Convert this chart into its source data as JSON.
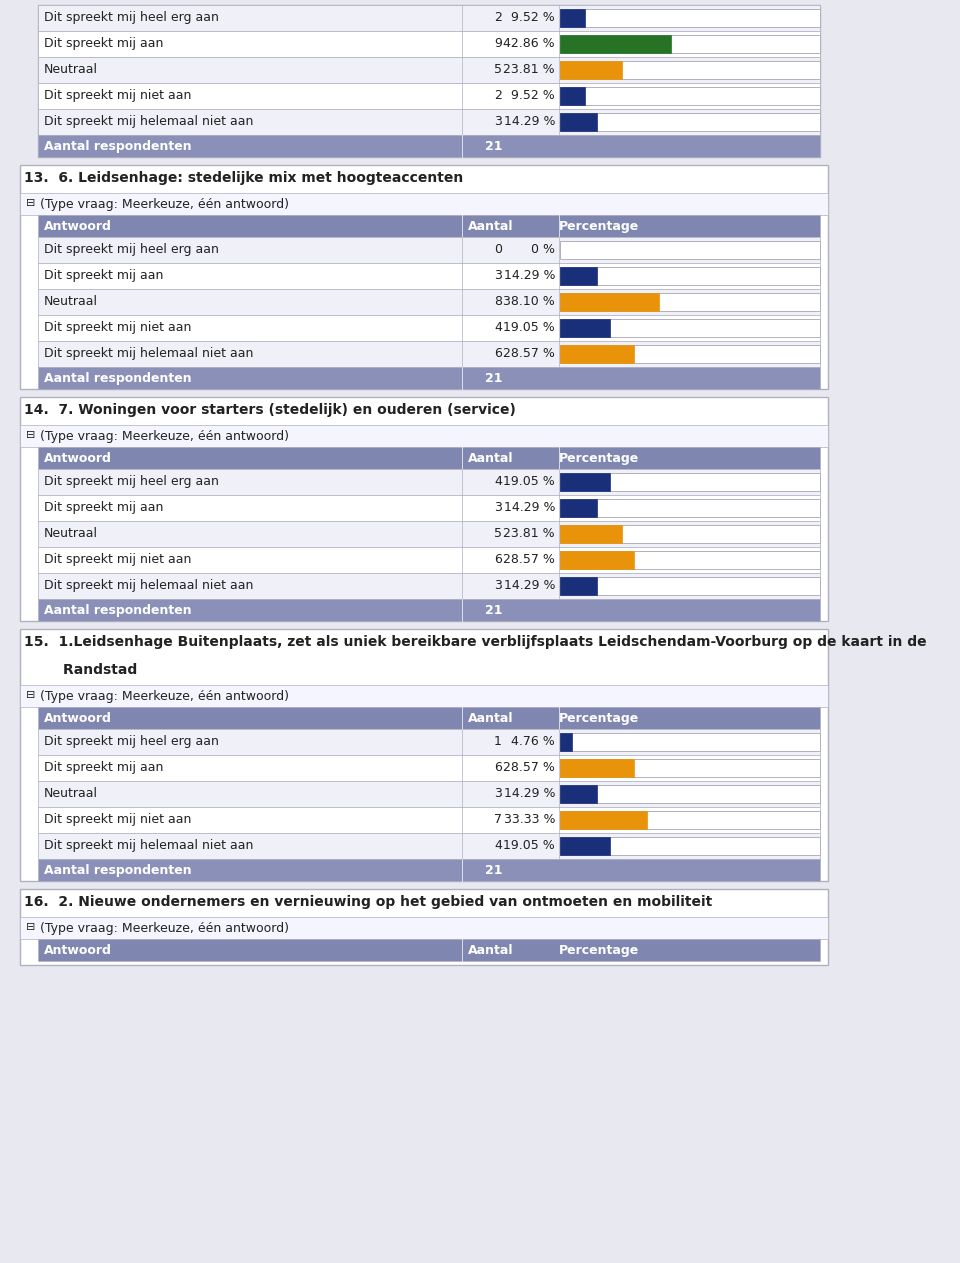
{
  "fig_w": 9.6,
  "fig_h": 12.63,
  "dpi": 100,
  "bg_color": "#e8e8f0",
  "table_bg": "#ffffff",
  "header_color": "#7f86b0",
  "header_text_color": "#ffffff",
  "row_even_color": "#f0f0f8",
  "row_odd_color": "#ffffff",
  "border_color": "#b0b0c0",
  "section_bg": "#f5f5ff",
  "text_color": "#222222",
  "total_row_color": "#8a90b8",
  "top_table": {
    "rows": [
      {
        "label": "Dit spreekt mij heel erg aan",
        "count": 2,
        "pct": "9.52 %",
        "bar_pct": 9.52,
        "bar_color": "#1a2f7a"
      },
      {
        "label": "Dit spreekt mij aan",
        "count": 9,
        "pct": "42.86 %",
        "bar_pct": 42.86,
        "bar_color": "#267326"
      },
      {
        "label": "Neutraal",
        "count": 5,
        "pct": "23.81 %",
        "bar_pct": 23.81,
        "bar_color": "#e8930a"
      },
      {
        "label": "Dit spreekt mij niet aan",
        "count": 2,
        "pct": "9.52 %",
        "bar_pct": 9.52,
        "bar_color": "#1a2f7a"
      },
      {
        "label": "Dit spreekt mij helemaal niet aan",
        "count": 3,
        "pct": "14.29 %",
        "bar_pct": 14.29,
        "bar_color": "#1a2f7a"
      }
    ],
    "total": 21
  },
  "sections": [
    {
      "number": "13.",
      "title": "6. Leidsenhage: stedelijke mix met hoogteaccenten",
      "subtitle": "(Type vraag: Meerkeuze, één antwoord)",
      "rows": [
        {
          "label": "Dit spreekt mij heel erg aan",
          "count": 0,
          "pct": "0 %",
          "bar_pct": 0,
          "bar_color": "#1a2f7a"
        },
        {
          "label": "Dit spreekt mij aan",
          "count": 3,
          "pct": "14.29 %",
          "bar_pct": 14.29,
          "bar_color": "#1a2f7a"
        },
        {
          "label": "Neutraal",
          "count": 8,
          "pct": "38.10 %",
          "bar_pct": 38.1,
          "bar_color": "#e8930a"
        },
        {
          "label": "Dit spreekt mij niet aan",
          "count": 4,
          "pct": "19.05 %",
          "bar_pct": 19.05,
          "bar_color": "#1a2f7a"
        },
        {
          "label": "Dit spreekt mij helemaal niet aan",
          "count": 6,
          "pct": "28.57 %",
          "bar_pct": 28.57,
          "bar_color": "#e8930a"
        }
      ],
      "total": 21
    },
    {
      "number": "14.",
      "title": "7. Woningen voor starters (stedelijk) en ouderen (service)",
      "subtitle": "(Type vraag: Meerkeuze, één antwoord)",
      "rows": [
        {
          "label": "Dit spreekt mij heel erg aan",
          "count": 4,
          "pct": "19.05 %",
          "bar_pct": 19.05,
          "bar_color": "#1a2f7a"
        },
        {
          "label": "Dit spreekt mij aan",
          "count": 3,
          "pct": "14.29 %",
          "bar_pct": 14.29,
          "bar_color": "#1a2f7a"
        },
        {
          "label": "Neutraal",
          "count": 5,
          "pct": "23.81 %",
          "bar_pct": 23.81,
          "bar_color": "#e8930a"
        },
        {
          "label": "Dit spreekt mij niet aan",
          "count": 6,
          "pct": "28.57 %",
          "bar_pct": 28.57,
          "bar_color": "#e8930a"
        },
        {
          "label": "Dit spreekt mij helemaal niet aan",
          "count": 3,
          "pct": "14.29 %",
          "bar_pct": 14.29,
          "bar_color": "#1a2f7a"
        }
      ],
      "total": 21
    },
    {
      "number": "15.",
      "title_lines": [
        "1.Leidsenhage Buitenplaats, zet als uniek bereikbare verblijfsplaats Leidschendam-Voorburg op de kaart in de",
        "Randstad"
      ],
      "subtitle": "(Type vraag: Meerkeuze, één antwoord)",
      "rows": [
        {
          "label": "Dit spreekt mij heel erg aan",
          "count": 1,
          "pct": "4.76 %",
          "bar_pct": 4.76,
          "bar_color": "#1a2f7a"
        },
        {
          "label": "Dit spreekt mij aan",
          "count": 6,
          "pct": "28.57 %",
          "bar_pct": 28.57,
          "bar_color": "#e8930a"
        },
        {
          "label": "Neutraal",
          "count": 3,
          "pct": "14.29 %",
          "bar_pct": 14.29,
          "bar_color": "#1a2f7a"
        },
        {
          "label": "Dit spreekt mij niet aan",
          "count": 7,
          "pct": "33.33 %",
          "bar_pct": 33.33,
          "bar_color": "#e8930a"
        },
        {
          "label": "Dit spreekt mij helemaal niet aan",
          "count": 4,
          "pct": "19.05 %",
          "bar_pct": 19.05,
          "bar_color": "#1a2f7a"
        }
      ],
      "total": 21
    },
    {
      "number": "16.",
      "title": "2. Nieuwe ondernemers en vernieuwing op het gebied van ontmoeten en mobiliteit",
      "subtitle": "(Type vraag: Meerkeuze, één antwoord)",
      "rows": [],
      "total": null,
      "partial": true
    }
  ]
}
